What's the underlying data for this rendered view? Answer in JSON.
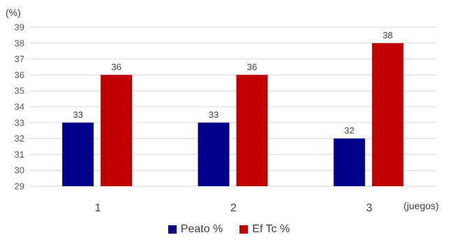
{
  "chart_data": {
    "type": "bar",
    "y_unit_label": "(%)",
    "x_unit_label": "(juegos)",
    "categories": [
      "1",
      "2",
      "3"
    ],
    "series": [
      {
        "name": "Peato %",
        "color": "#00008B",
        "values": [
          33,
          33,
          32
        ]
      },
      {
        "name": "Ef Tc %",
        "color": "#C00000",
        "values": [
          36,
          36,
          38
        ]
      }
    ],
    "ylim": [
      29,
      39
    ],
    "yticks": [
      29,
      30,
      31,
      32,
      33,
      34,
      35,
      36,
      37,
      38,
      39
    ],
    "grid": true,
    "legend_position": "bottom"
  }
}
